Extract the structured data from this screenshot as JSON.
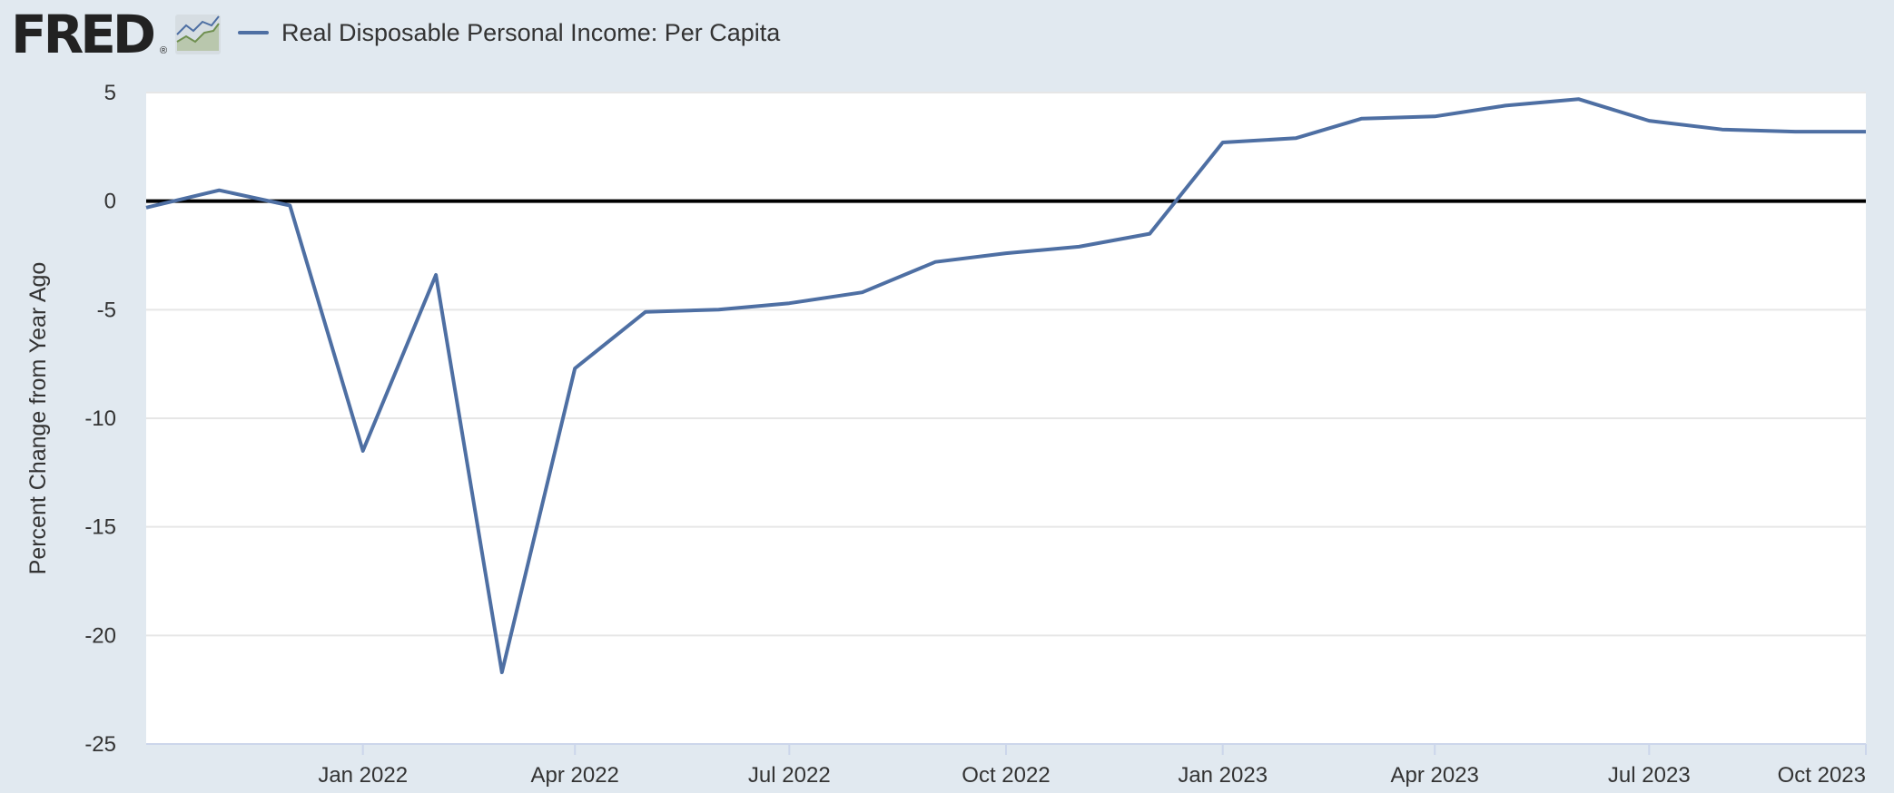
{
  "header": {
    "logo_text": "FRED",
    "logo_reg": "®",
    "legend_label": "Real Disposable Personal Income: Per Capita"
  },
  "colors": {
    "background": "#e1e9f0",
    "plot_background": "#ffffff",
    "series": "#4e6fa3",
    "zero_line": "#000000",
    "grid": "#e6e6e6"
  },
  "chart_data": {
    "type": "line",
    "title": "",
    "xlabel": "",
    "ylabel": "Percent Change from Year Ago",
    "ylim": [
      -25,
      5
    ],
    "yticks": [
      5,
      0,
      -5,
      -10,
      -15,
      -20,
      -25
    ],
    "xlim": [
      "2021-10-01",
      "2023-10-01"
    ],
    "xticks": [
      {
        "date": "2022-01-01",
        "label": "Jan 2022"
      },
      {
        "date": "2022-04-01",
        "label": "Apr 2022"
      },
      {
        "date": "2022-07-01",
        "label": "Jul 2022"
      },
      {
        "date": "2022-10-01",
        "label": "Oct 2022"
      },
      {
        "date": "2023-01-01",
        "label": "Jan 2023"
      },
      {
        "date": "2023-04-01",
        "label": "Apr 2023"
      },
      {
        "date": "2023-07-01",
        "label": "Jul 2023"
      },
      {
        "date": "2023-10-01",
        "label": "Oct 2023"
      }
    ],
    "grid": true,
    "legend": "top-left",
    "series": [
      {
        "name": "Real Disposable Personal Income: Per Capita",
        "x": [
          "2021-10-01",
          "2021-11-01",
          "2021-12-01",
          "2022-01-01",
          "2022-02-01",
          "2022-03-01",
          "2022-04-01",
          "2022-05-01",
          "2022-06-01",
          "2022-07-01",
          "2022-08-01",
          "2022-09-01",
          "2022-10-01",
          "2022-11-01",
          "2022-12-01",
          "2023-01-01",
          "2023-02-01",
          "2023-03-01",
          "2023-04-01",
          "2023-05-01",
          "2023-06-01",
          "2023-07-01",
          "2023-08-01",
          "2023-09-01",
          "2023-10-01"
        ],
        "y": [
          -0.3,
          0.5,
          -0.2,
          -11.5,
          -3.4,
          -21.7,
          -7.7,
          -5.1,
          -5.0,
          -4.7,
          -4.2,
          -2.8,
          -2.4,
          -2.1,
          -1.5,
          2.7,
          2.9,
          3.8,
          3.9,
          4.4,
          4.7,
          3.7,
          3.3,
          3.2,
          3.2
        ]
      }
    ]
  }
}
